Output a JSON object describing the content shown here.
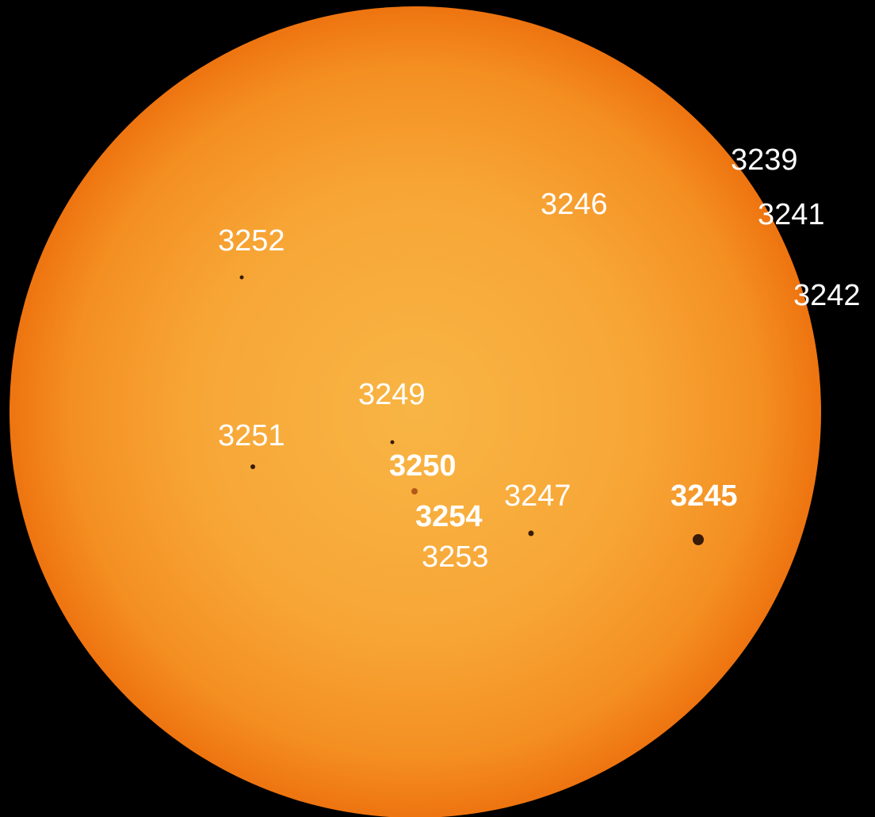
{
  "labels": [
    "3239",
    "3246",
    "3241",
    "3252",
    "3242",
    "3249",
    "3251",
    "3250",
    "3247",
    "3245",
    "3254",
    "3253"
  ]
}
